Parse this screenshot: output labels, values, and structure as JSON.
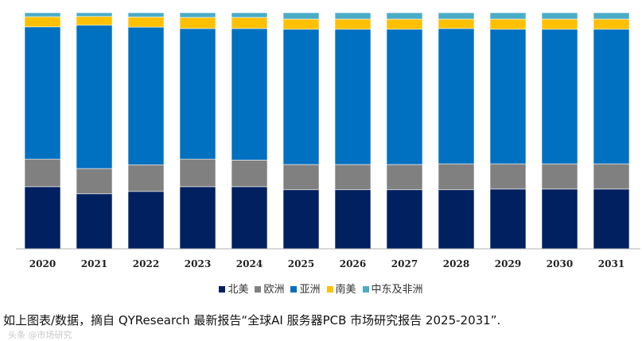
{
  "chart_data": {
    "type": "bar",
    "stacked": true,
    "normalized": true,
    "title": "",
    "xlabel": "",
    "ylabel": "",
    "ylim": [
      0,
      100
    ],
    "categories": [
      "2020",
      "2021",
      "2022",
      "2023",
      "2024",
      "2025",
      "2026",
      "2027",
      "2028",
      "2029",
      "2030",
      "2031"
    ],
    "series": [
      {
        "name": "北美",
        "color": "#002060",
        "values": [
          26.3,
          23.3,
          24.3,
          26.3,
          26.3,
          25.0,
          25.0,
          25.0,
          25.0,
          25.3,
          25.3,
          25.3
        ]
      },
      {
        "name": "欧洲",
        "color": "#808080",
        "values": [
          11.7,
          10.7,
          11.3,
          11.7,
          11.3,
          10.7,
          10.7,
          10.7,
          11.0,
          10.7,
          10.7,
          10.7
        ]
      },
      {
        "name": "亚洲",
        "color": "#0070C0",
        "values": [
          56.0,
          60.7,
          58.3,
          55.3,
          55.7,
          57.3,
          57.3,
          57.3,
          57.3,
          57.0,
          57.0,
          57.0
        ]
      },
      {
        "name": "南美",
        "color": "#FFC000",
        "values": [
          4.3,
          3.7,
          4.3,
          4.7,
          4.7,
          4.3,
          4.3,
          4.3,
          4.0,
          4.3,
          4.3,
          4.3
        ]
      },
      {
        "name": "中东及非洲",
        "color": "#4BACC6",
        "values": [
          1.7,
          1.6,
          1.8,
          2.0,
          2.0,
          2.7,
          2.7,
          2.7,
          2.7,
          2.7,
          2.7,
          2.7
        ]
      }
    ]
  },
  "caption": "如上图表/数据，摘自 QYResearch 最新报告“全球AI 服务器PCB 市场研究报告 2025-2031”.",
  "watermark": "头条 @市场研究"
}
